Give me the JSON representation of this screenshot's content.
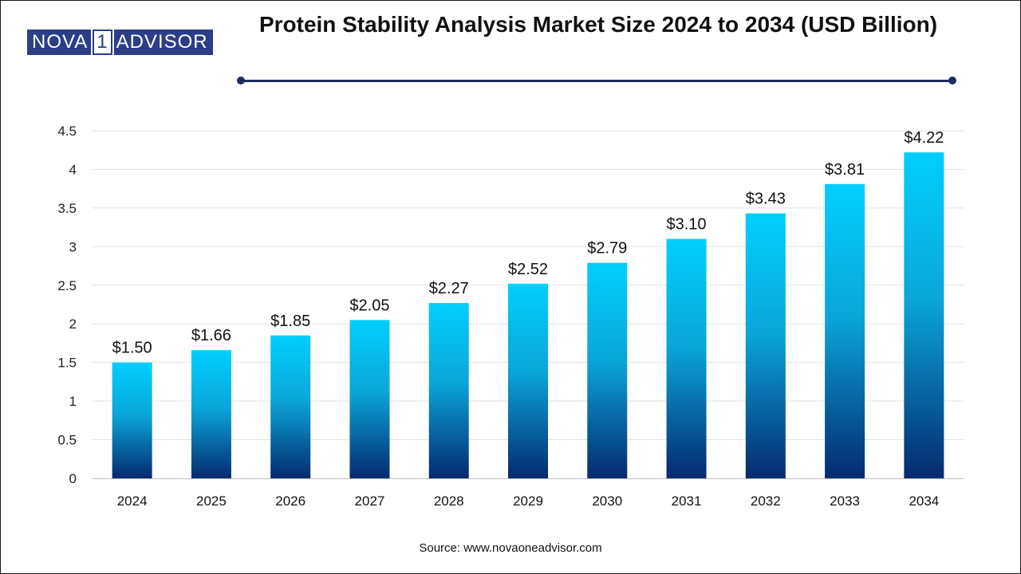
{
  "logo": {
    "left": "NOVA",
    "num": "1",
    "right": "ADVISOR"
  },
  "source": "Source: www.novaoneadvisor.com",
  "colors": {
    "bar_top": "#00cfff",
    "bar_bottom": "#052a6e",
    "rule": "#1f2d5c",
    "logo": "#2c3e87"
  },
  "chart_data": {
    "type": "bar",
    "title": "Protein Stability Analysis Market Size 2024 to 2034 (USD Billion)",
    "xlabel": "",
    "ylabel": "",
    "categories": [
      "2024",
      "2025",
      "2026",
      "2027",
      "2028",
      "2029",
      "2030",
      "2031",
      "2032",
      "2033",
      "2034"
    ],
    "values": [
      1.5,
      1.66,
      1.85,
      2.05,
      2.27,
      2.52,
      2.79,
      3.1,
      3.43,
      3.81,
      4.22
    ],
    "value_labels": [
      "$1.50",
      "$1.66",
      "$1.85",
      "$2.05",
      "$2.27",
      "$2.52",
      "$2.79",
      "$3.10",
      "$3.43",
      "$3.81",
      "$4.22"
    ],
    "ylim": [
      0,
      4.5
    ],
    "yticks": [
      "0",
      "0.5",
      "1",
      "1.5",
      "2",
      "2.5",
      "3",
      "3.5",
      "4",
      "4.5"
    ],
    "grid": true,
    "legend": "none"
  }
}
